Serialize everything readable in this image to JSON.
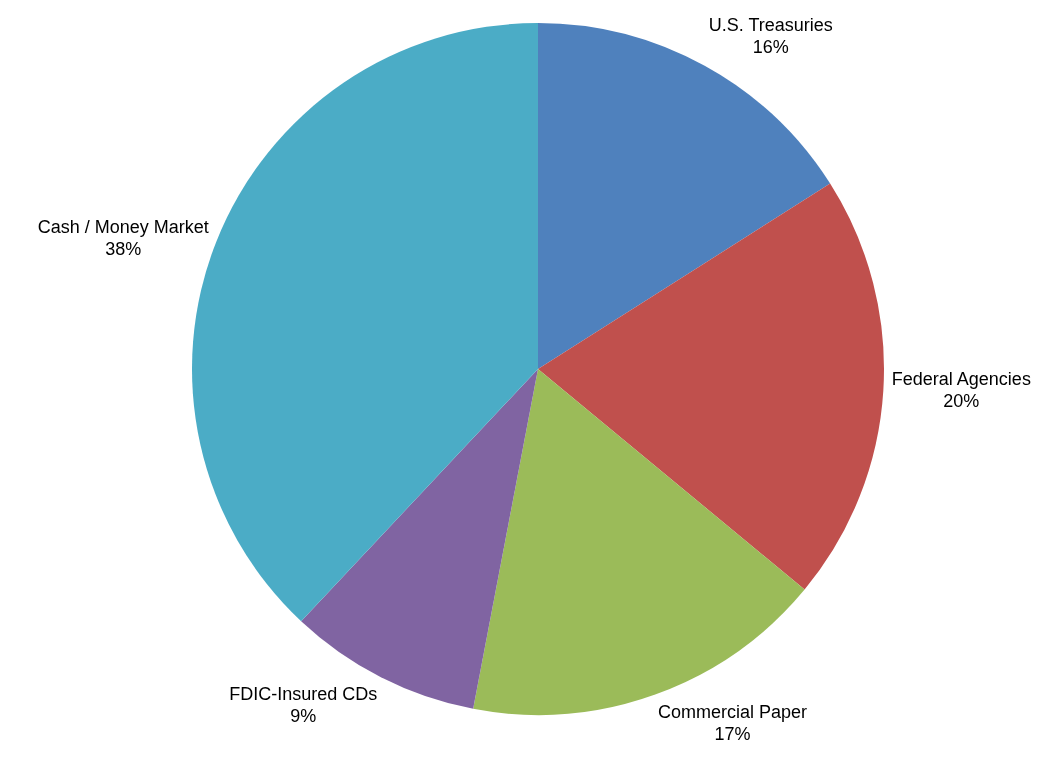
{
  "chart_data": {
    "type": "pie",
    "categories": [
      "U.S. Treasuries",
      "Federal Agencies",
      "Commercial Paper",
      "FDIC-Insured CDs",
      "Cash / Money Market"
    ],
    "values": [
      16,
      20,
      17,
      9,
      38
    ],
    "value_labels": [
      "16%",
      "20%",
      "17%",
      "9%",
      "38%"
    ],
    "colors": [
      "#4f81bd",
      "#c0504d",
      "#9bbb59",
      "#8064a2",
      "#4bacc6"
    ],
    "legend": false
  }
}
